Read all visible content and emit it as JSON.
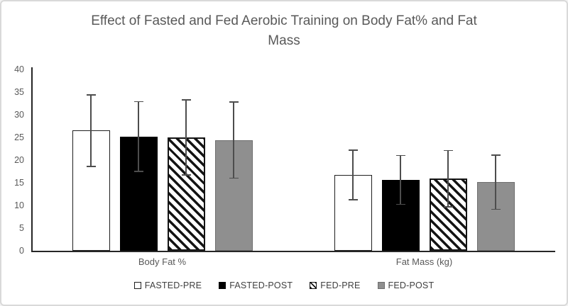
{
  "window": {
    "background": "#ffffff",
    "border_color": "#d9d9d9"
  },
  "chart_data": {
    "type": "bar",
    "title": "Effect of Fasted and Fed Aerobic Training on Body Fat% and Fat Mass",
    "title_lines": [
      "Effect of Fasted and Fed Aerobic Training on Body Fat% and Fat",
      "Mass"
    ],
    "categories": [
      "Body Fat %",
      "Fat Mass (kg)"
    ],
    "series": [
      {
        "name": "FASTED-PRE",
        "style": "white",
        "values": [
          26.5,
          16.7
        ],
        "errors": [
          8.0,
          5.6
        ]
      },
      {
        "name": "FASTED-POST",
        "style": "black",
        "values": [
          25.2,
          15.6
        ],
        "errors": [
          7.8,
          5.5
        ]
      },
      {
        "name": "FED-PRE",
        "style": "hatch",
        "values": [
          25.0,
          15.9
        ],
        "errors": [
          8.4,
          6.3
        ]
      },
      {
        "name": "FED-POST",
        "style": "gray",
        "values": [
          24.4,
          15.1
        ],
        "errors": [
          8.5,
          6.1
        ]
      }
    ],
    "xlabel": "",
    "ylabel": "",
    "ylim": [
      0,
      40
    ],
    "yticks": [
      0,
      5,
      10,
      15,
      20,
      25,
      30,
      35,
      40
    ],
    "grid": false,
    "error_bars": true,
    "legend_position": "bottom"
  },
  "colors": {
    "bar_white": "#ffffff",
    "bar_black": "#000000",
    "bar_gray": "#8f8f8f",
    "bar_gray_border": "#6e6e6e",
    "bar_border": "#1f1f1f",
    "hatch_stripe": "#141414",
    "axis": "#262626",
    "title_text": "#595959",
    "tick_text": "#595959",
    "legend_text": "#404040",
    "error_bar": "#4d4d4d"
  }
}
